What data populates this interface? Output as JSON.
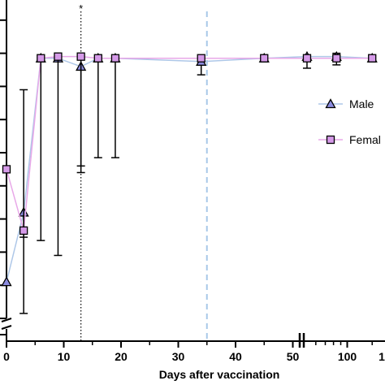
{
  "chart_data": {
    "type": "line",
    "title": "",
    "xlabel": "Days after vaccination",
    "ylabel": "",
    "x_ticks_linear": [
      "0",
      "10",
      "20",
      "30",
      "40"
    ],
    "x_ticks_break": [
      "50",
      "100",
      "1"
    ],
    "series": [
      {
        "name": "Male",
        "marker": "triangle",
        "line_color": "#aec7e8",
        "fill_color": "#8c8ce0",
        "x": [
          0,
          3,
          6,
          9,
          13,
          16,
          19,
          34,
          45,
          52,
          84,
          150
        ],
        "y": [
          2.2,
          6.4,
          15.7,
          15.7,
          15.2,
          15.7,
          15.7,
          15.5,
          15.7,
          15.8,
          15.8,
          15.7
        ],
        "err_low": [
          0,
          1.5,
          0,
          0,
          6.0,
          0,
          0,
          0.8,
          0,
          0.7,
          0.5,
          0
        ],
        "err_high": [
          0,
          0,
          0,
          0,
          0,
          0,
          0,
          0,
          0,
          0,
          0.2,
          0
        ]
      },
      {
        "name": "Femal",
        "marker": "square",
        "line_color": "#e8a8e8",
        "fill_color": "#d59ae8",
        "x": [
          0,
          3,
          6,
          9,
          13,
          16,
          19,
          34,
          45,
          52,
          84,
          150
        ],
        "y": [
          9.0,
          5.3,
          15.7,
          15.8,
          15.8,
          15.7,
          15.7,
          15.7,
          15.7,
          15.7,
          15.7,
          15.7
        ],
        "err_low": [
          0,
          5.0,
          11.0,
          12.0,
          7.0,
          6.0,
          6.0,
          0,
          0,
          0,
          0,
          0
        ],
        "err_high": [
          0,
          8.5,
          0,
          0,
          0,
          0,
          0,
          0,
          0,
          0,
          0,
          0
        ]
      }
    ],
    "vlines": [
      {
        "x": 13,
        "style": "dotted",
        "color": "#000000",
        "label": "*"
      },
      {
        "x": 35,
        "style": "dashed",
        "color": "#a8c8e8",
        "label": ""
      }
    ],
    "legend": {
      "position": "right",
      "entries": [
        "Male",
        "Femal"
      ]
    },
    "grid": false
  }
}
